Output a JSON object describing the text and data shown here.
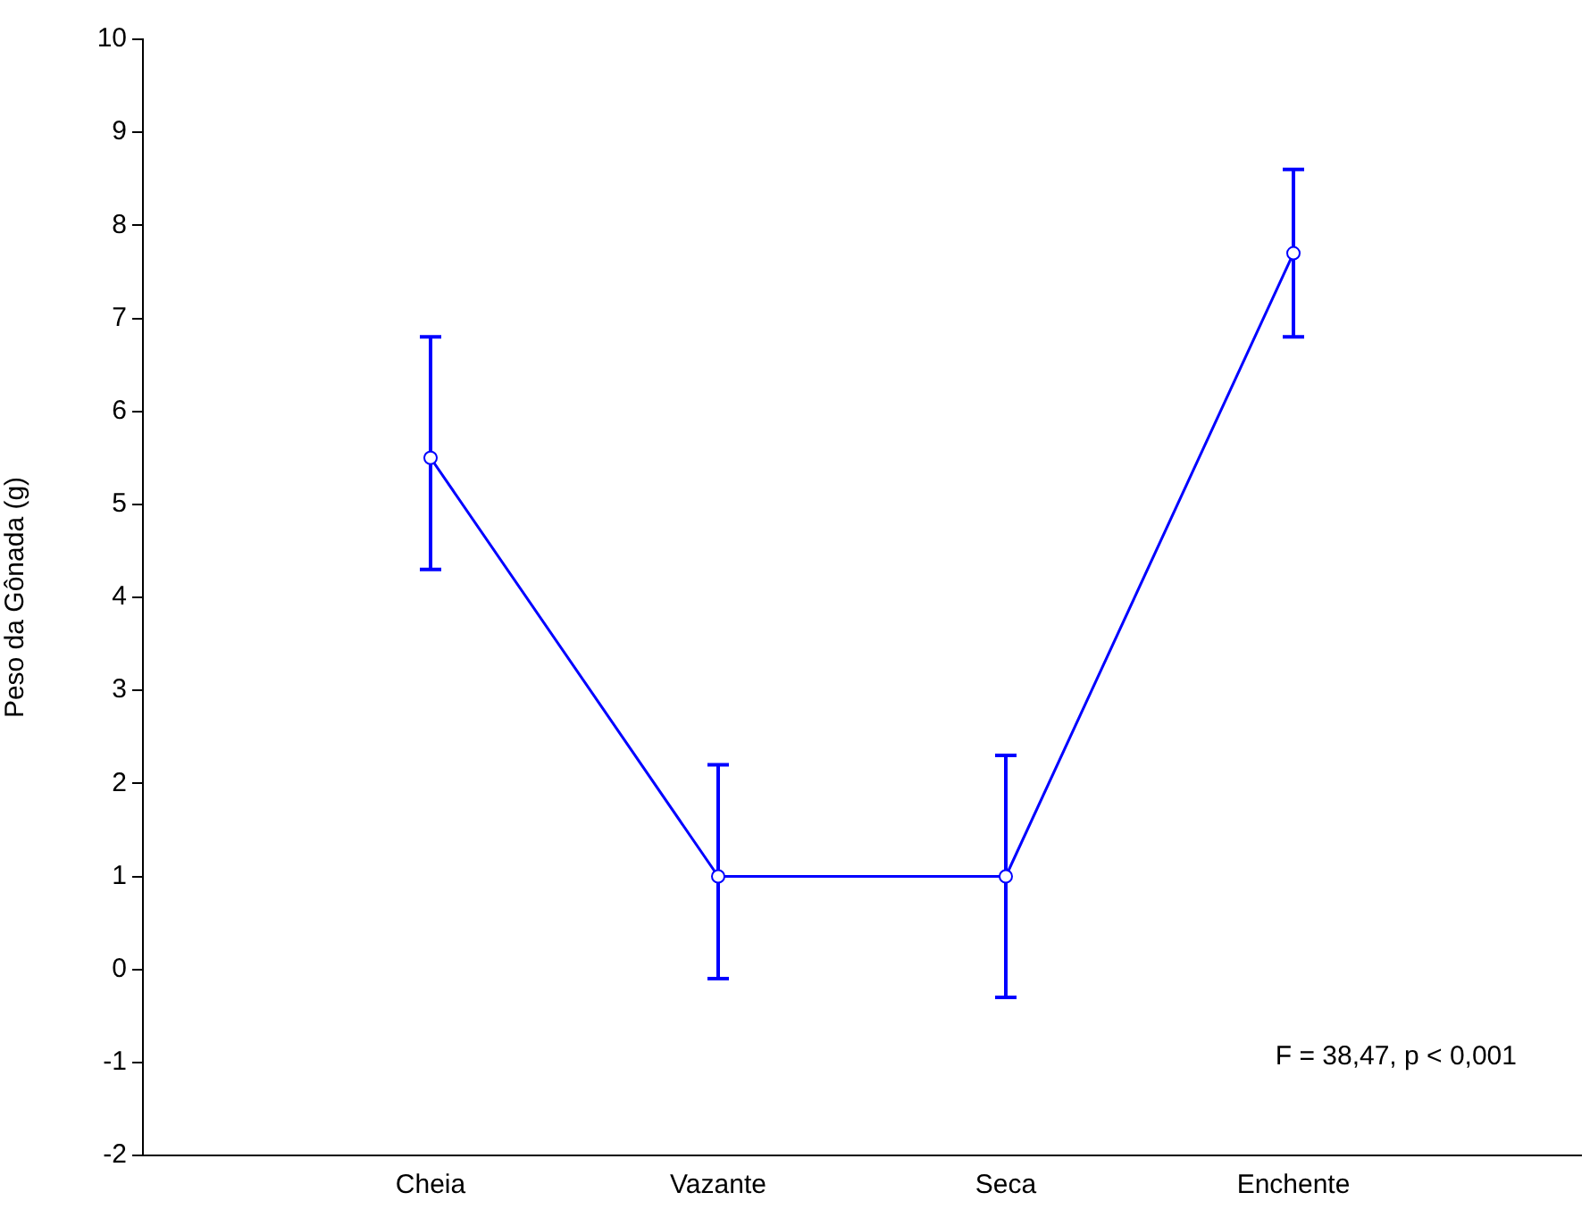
{
  "chart_data": {
    "type": "line",
    "ylabel": "Peso da Gônada (g)",
    "categories": [
      "Cheia",
      "Vazante",
      "Seca",
      "Enchente"
    ],
    "series": [
      {
        "color": "#0000ff",
        "values": [
          5.5,
          1.0,
          1.0,
          7.7
        ],
        "errors": [
          [
            4.3,
            6.8
          ],
          [
            -0.1,
            2.2
          ],
          [
            -0.3,
            2.3
          ],
          [
            6.8,
            8.6
          ]
        ]
      }
    ],
    "ylim": [
      -2,
      10
    ],
    "yticks": [
      -2,
      -1,
      0,
      1,
      2,
      3,
      4,
      5,
      6,
      7,
      8,
      9,
      10
    ],
    "grid": false,
    "legend": false,
    "marker": "circle",
    "line_style": "solid",
    "annotations": [
      "F = 38,47, p < 0,001"
    ]
  }
}
